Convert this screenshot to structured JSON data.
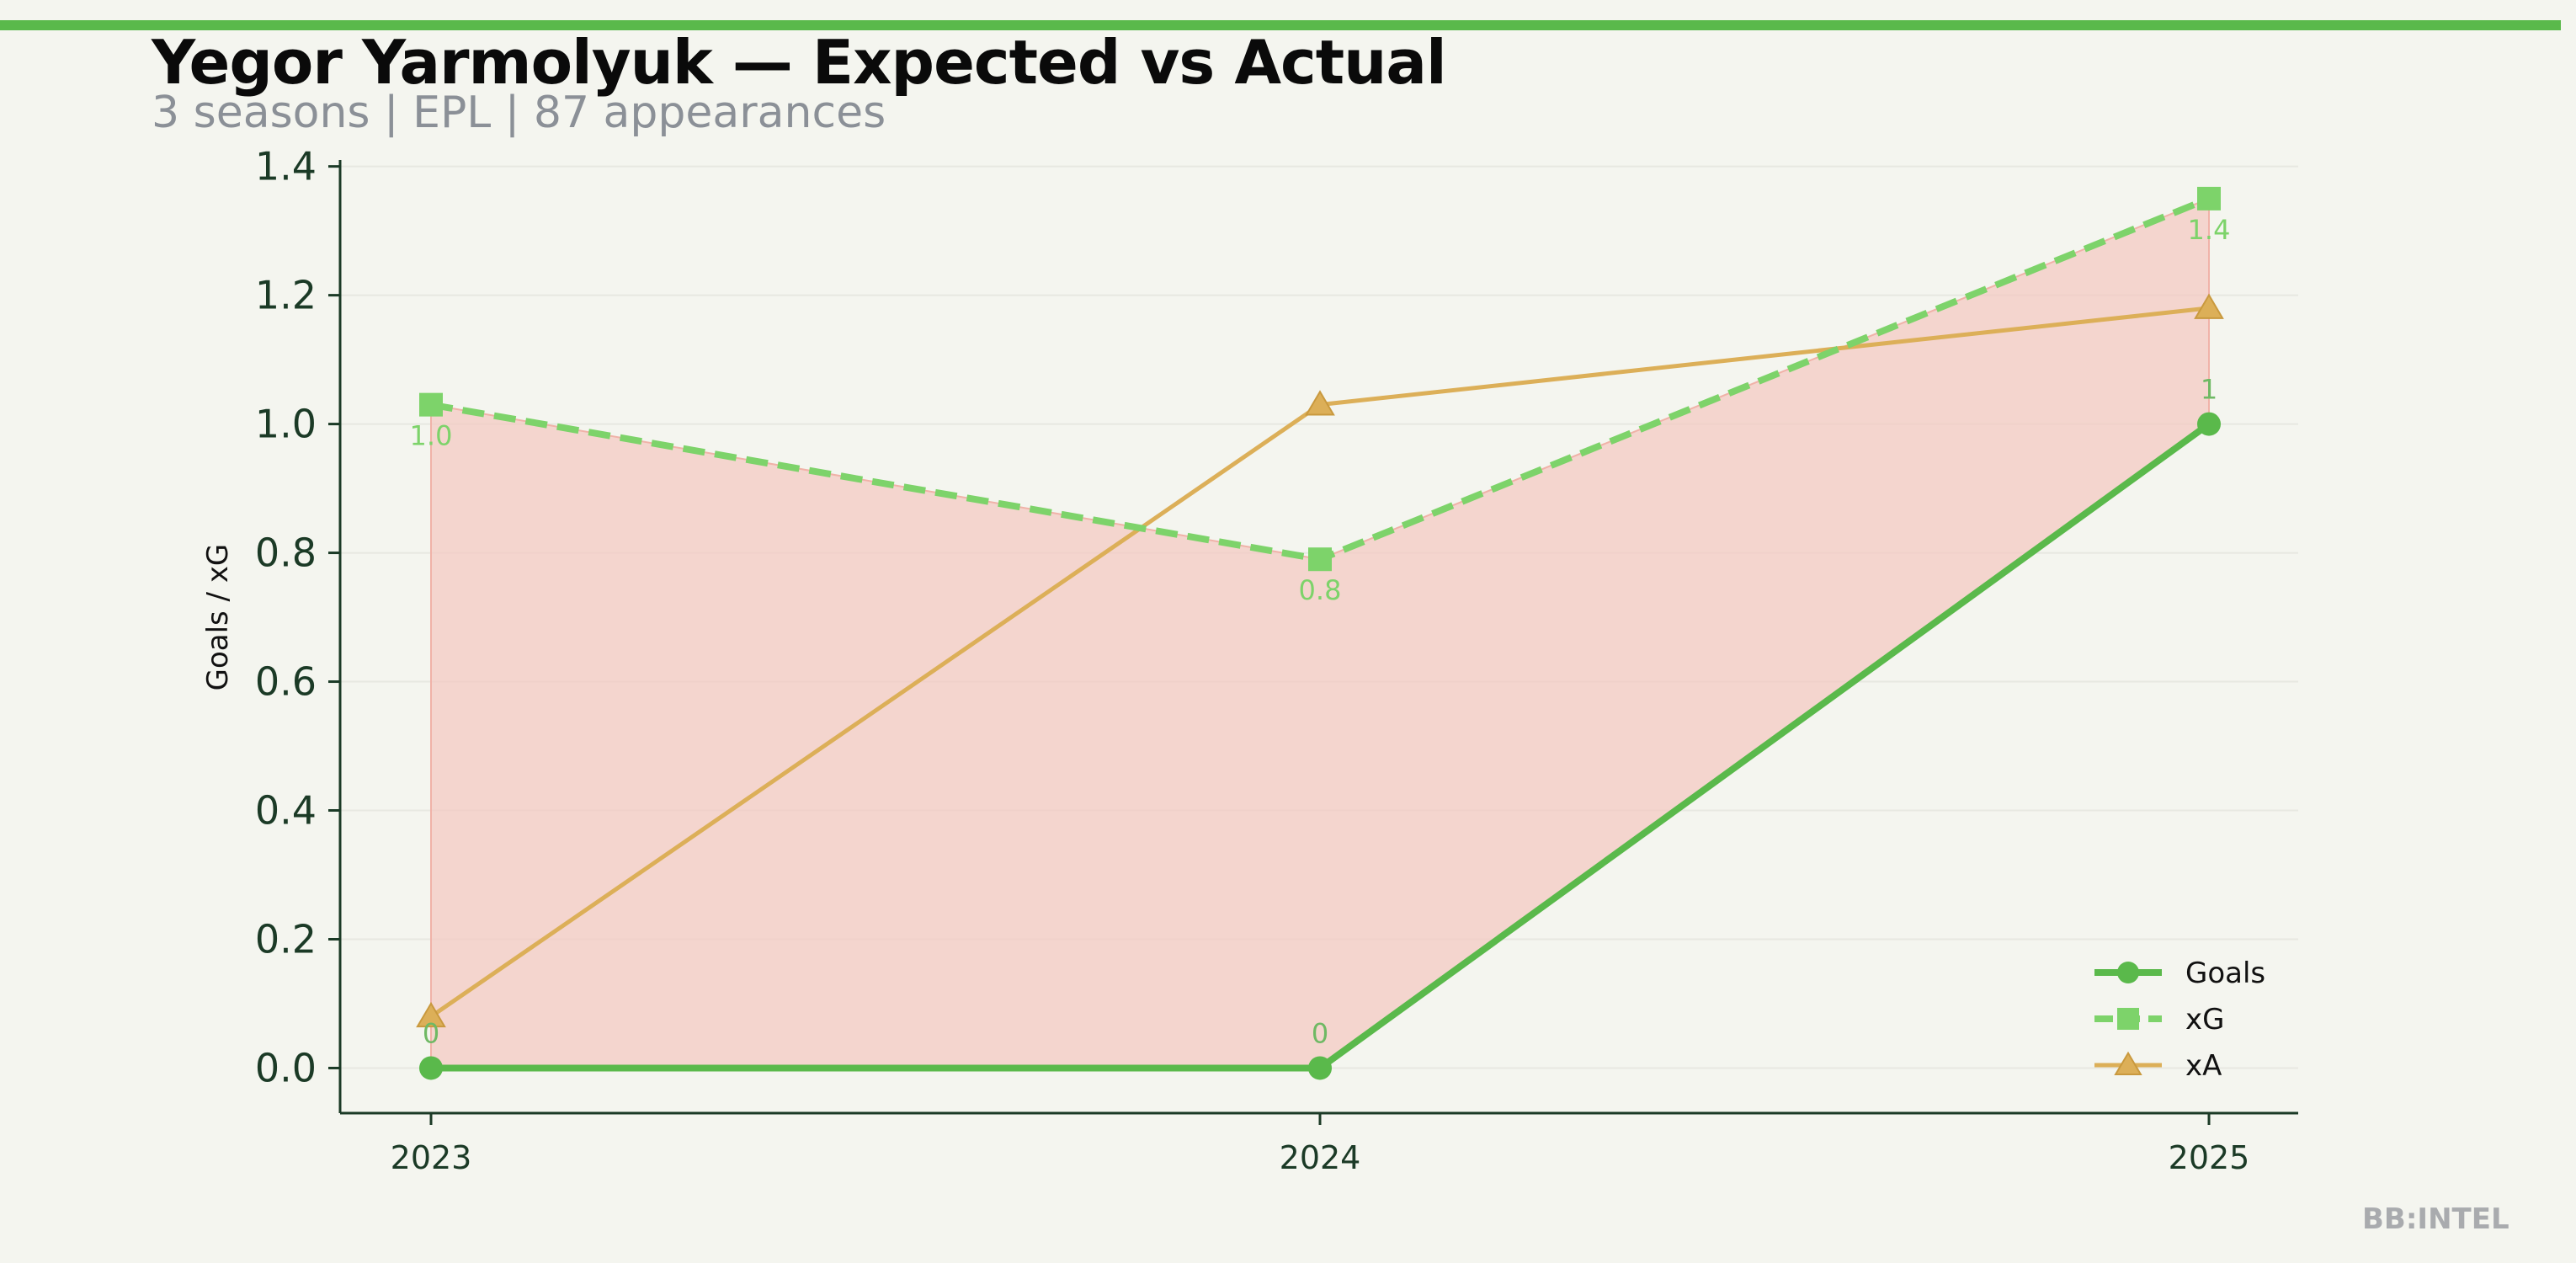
{
  "header": {
    "title": "Yegor Yarmolyuk — Expected vs Actual",
    "subtitle": "3 seasons | EPL | 87 appearances"
  },
  "watermark": "BB:INTEL",
  "colors": {
    "accent": "#5ab94b",
    "goals": "#5ab94b",
    "xg": "#7dd36a",
    "xa": "#dcaf58",
    "fill": "#f4c7c0",
    "axis": "#1b3a26"
  },
  "chart_data": {
    "type": "line",
    "title": "Yegor Yarmolyuk — Expected vs Actual",
    "subtitle": "3 seasons | EPL | 87 appearances",
    "xlabel": "",
    "ylabel": "Goals / xG",
    "x": [
      "2023",
      "2024",
      "2025"
    ],
    "ylim": [
      -0.07,
      1.41
    ],
    "yticks": [
      "0.0",
      "0.2",
      "0.4",
      "0.6",
      "0.8",
      "1.0",
      "1.2",
      "1.4"
    ],
    "grid": "horizontal",
    "legend": "bottom-right",
    "fill_between": [
      "Goals",
      "xG"
    ],
    "series": [
      {
        "name": "Goals",
        "values": [
          0,
          0,
          1
        ],
        "labels": [
          "0",
          "0",
          "1"
        ],
        "marker": "circle",
        "style": "solid"
      },
      {
        "name": "xG",
        "values": [
          1.03,
          0.79,
          1.35
        ],
        "labels": [
          "1.0",
          "0.8",
          "1.4"
        ],
        "marker": "square",
        "style": "dashed"
      },
      {
        "name": "xA",
        "values": [
          0.08,
          1.03,
          1.18
        ],
        "labels": [],
        "marker": "triangle",
        "style": "solid"
      }
    ]
  }
}
